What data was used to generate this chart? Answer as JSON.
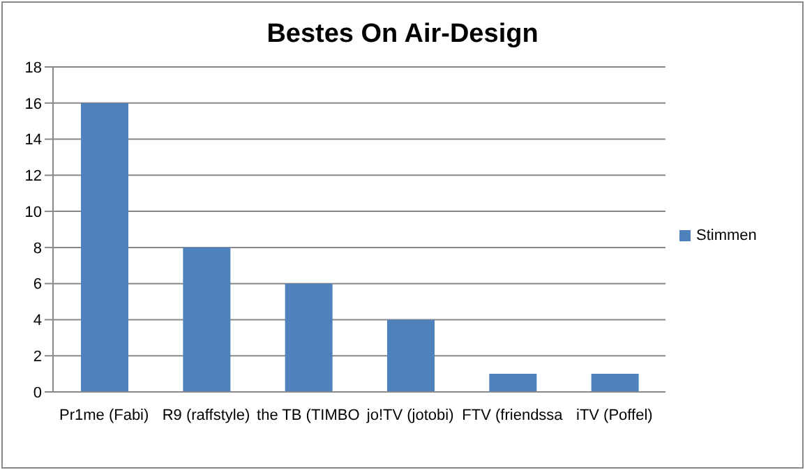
{
  "chart_data": {
    "type": "bar",
    "title": "Bestes On Air-Design",
    "categories": [
      "Pr1me (Fabi)",
      "R9 (raffstyle)",
      "the TB (TIMBO",
      "jo!TV (jotobi)",
      "FTV (friendssa",
      "iTV (Poffel)"
    ],
    "series": [
      {
        "name": "Stimmen",
        "color": "#4f81bd",
        "values": [
          16,
          8,
          6,
          4,
          1,
          1
        ]
      }
    ],
    "ylim": [
      0,
      18
    ],
    "yticks": [
      0,
      2,
      4,
      6,
      8,
      10,
      12,
      14,
      16,
      18
    ],
    "grid": "y",
    "legend": "right"
  }
}
